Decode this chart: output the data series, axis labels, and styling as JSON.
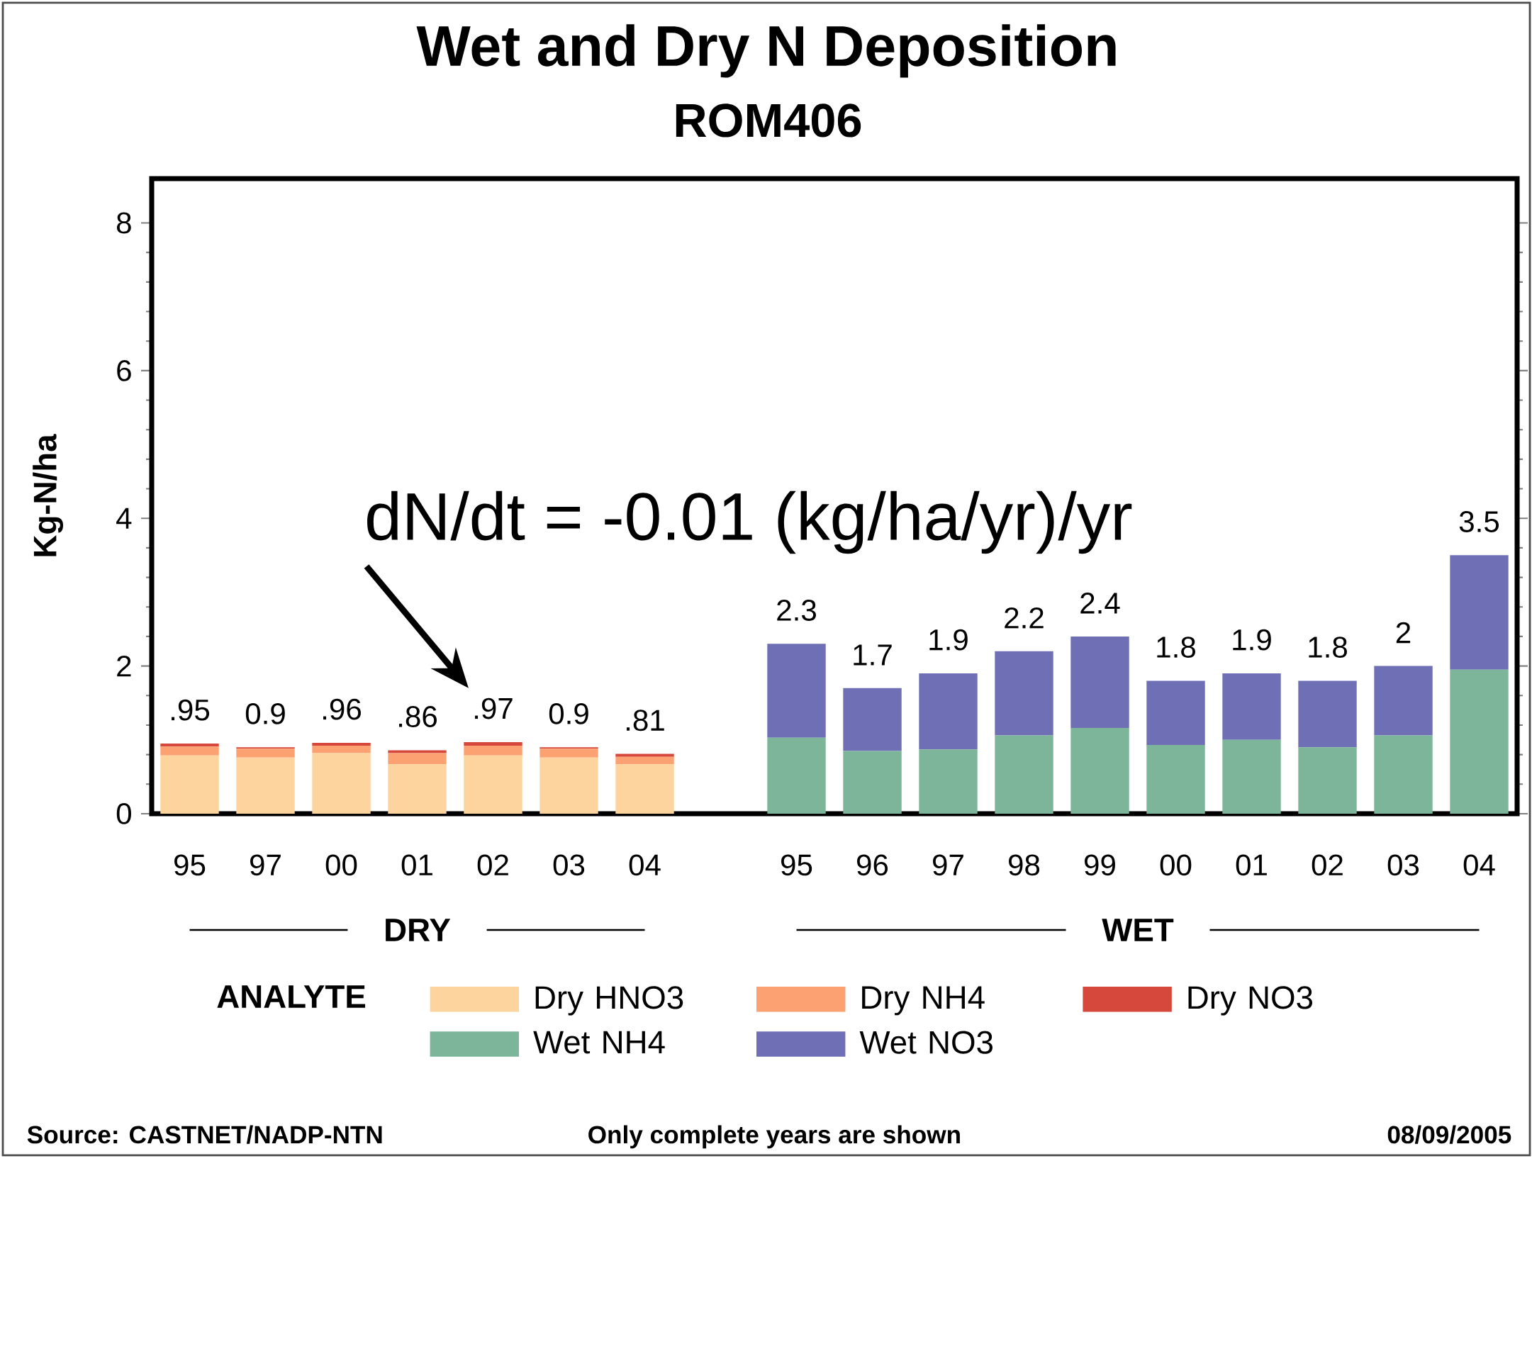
{
  "chart_data": {
    "type": "bar",
    "stacked": true,
    "title": "Wet and Dry N Deposition",
    "subtitle": "ROM406",
    "ylabel": "Kg-N/ha",
    "legend_title": "ANALYTE",
    "categories": [
      "95",
      "97",
      "00",
      "01",
      "02",
      "03",
      "04",
      null,
      "95",
      "96",
      "97",
      "98",
      "99",
      "00",
      "01",
      "02",
      "03",
      "04"
    ],
    "series": [
      {
        "name": "Dry HNO3",
        "color": "#fdd49e",
        "values": [
          0.79,
          0.76,
          0.82,
          0.67,
          0.79,
          0.76,
          0.67,
          null,
          null,
          null,
          null,
          null,
          null,
          null,
          null,
          null,
          null,
          null
        ]
      },
      {
        "name": "Dry NH4",
        "color": "#fca272",
        "values": [
          0.12,
          0.12,
          0.1,
          0.15,
          0.13,
          0.12,
          0.1,
          null,
          null,
          null,
          null,
          null,
          null,
          null,
          null,
          null,
          null,
          null
        ]
      },
      {
        "name": "Dry NO3",
        "color": "#d6473c",
        "values": [
          0.04,
          0.02,
          0.04,
          0.04,
          0.05,
          0.02,
          0.04,
          null,
          null,
          null,
          null,
          null,
          null,
          null,
          null,
          null,
          null,
          null
        ]
      },
      {
        "name": "Wet NH4",
        "color": "#7db59a",
        "values": [
          null,
          null,
          null,
          null,
          null,
          null,
          null,
          null,
          1.03,
          0.85,
          0.87,
          1.06,
          1.16,
          0.93,
          1.0,
          0.9,
          1.06,
          1.95
        ]
      },
      {
        "name": "Wet NO3",
        "color": "#6f6fb5",
        "values": [
          null,
          null,
          null,
          null,
          null,
          null,
          null,
          null,
          1.27,
          0.85,
          1.03,
          1.14,
          1.24,
          0.87,
          0.9,
          0.9,
          0.94,
          1.55
        ]
      }
    ],
    "totals": [
      ".95",
      "0.9",
      ".96",
      ".86",
      ".97",
      "0.9",
      ".81",
      null,
      "2.3",
      "1.7",
      "1.9",
      "2.2",
      "2.4",
      "1.8",
      "1.9",
      "1.8",
      "2",
      "3.5"
    ],
    "ylim": [
      0,
      8.6
    ],
    "yticks": [
      0,
      2,
      4,
      6,
      8
    ],
    "grid": false,
    "legend": "bottom",
    "annotations": [
      "DRY",
      "WET",
      "dN/dt = -0.01 (kg/ha/yr)/yr",
      "Source:  CASTNET/NADP-NTN",
      "Only complete years are shown",
      "08/09/2005"
    ]
  }
}
